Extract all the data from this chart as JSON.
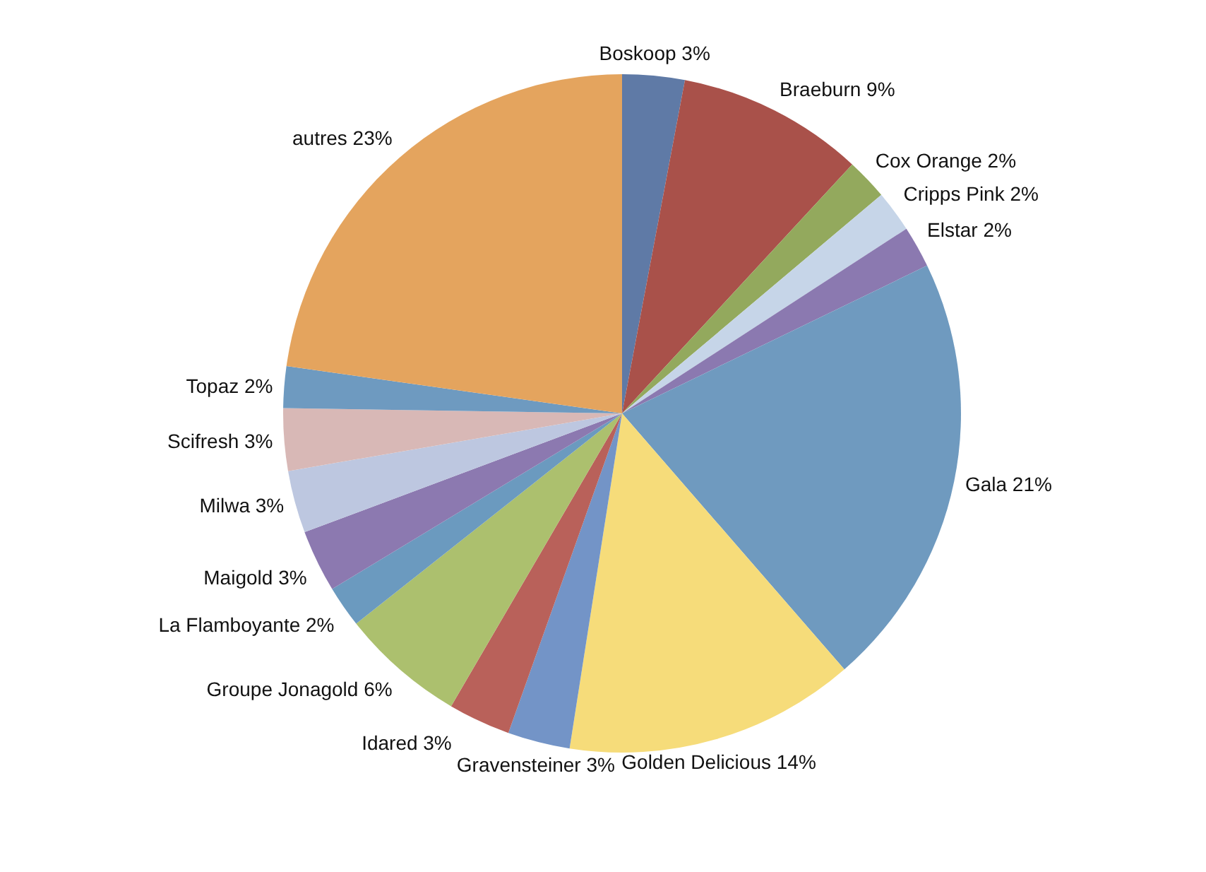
{
  "chart_data": {
    "type": "pie",
    "categories": [
      "Boskoop",
      "Braeburn",
      "Cox Orange",
      "Cripps Pink",
      "Elstar",
      "Gala",
      "Golden Delicious",
      "Gravensteiner",
      "Idared",
      "Groupe Jonagold",
      "La Flamboyante",
      "Maigold",
      "Milwa",
      "Scifresh",
      "Topaz",
      "autres"
    ],
    "values": [
      3,
      9,
      2,
      2,
      2,
      21,
      14,
      3,
      3,
      6,
      2,
      3,
      3,
      3,
      2,
      23
    ],
    "value_labels": [
      "3%",
      "9%",
      "2%",
      "2%",
      "2%",
      "21%",
      "14%",
      "3%",
      "3%",
      "6%",
      "2%",
      "3%",
      "3%",
      "3%",
      "2%",
      "23%"
    ],
    "colors": [
      "#5f7aa6",
      "#a9514a",
      "#93a95d",
      "#c6d5e8",
      "#8b79b0",
      "#6f9abf",
      "#f6dc7a",
      "#7394c7",
      "#b9615a",
      "#acc06e",
      "#6b9abf",
      "#8c79b0",
      "#bdc7e0",
      "#d8b8b6",
      "#6e9ac0",
      "#e4a45e"
    ]
  }
}
